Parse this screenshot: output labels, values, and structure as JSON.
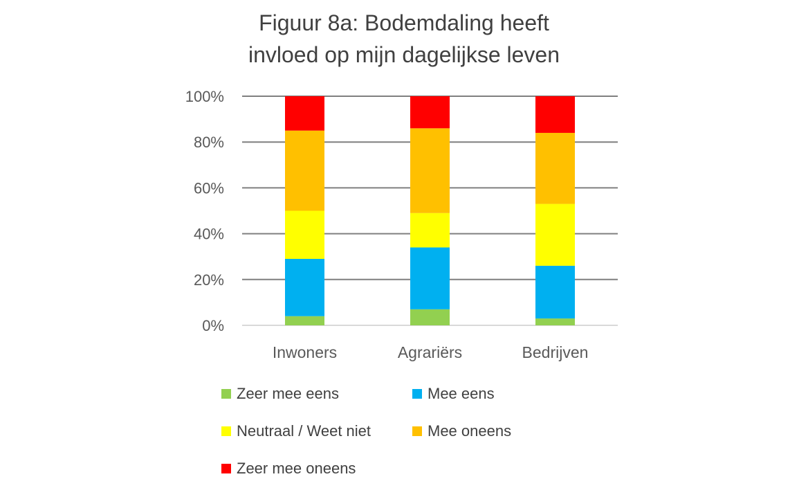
{
  "chart_data": {
    "type": "bar",
    "stacked": true,
    "title_lines": [
      "Figuur 8a: Bodemdaling heeft",
      "invloed op mijn dagelijkse leven"
    ],
    "categories": [
      "Inwoners",
      "Agrariërs",
      "Bedrijven"
    ],
    "ylim": [
      0,
      100
    ],
    "yticks": [
      "0%",
      "20%",
      "40%",
      "60%",
      "80%",
      "100%"
    ],
    "grid": true,
    "legend_position": "bottom",
    "series": [
      {
        "name": "Zeer mee eens",
        "color": "#92D050",
        "values": [
          4,
          7,
          3
        ]
      },
      {
        "name": "Mee eens",
        "color": "#00B0F0",
        "values": [
          25,
          27,
          23
        ]
      },
      {
        "name": "Neutraal / Weet niet",
        "color": "#FFFF00",
        "values": [
          21,
          15,
          27
        ]
      },
      {
        "name": "Mee oneens",
        "color": "#FFC000",
        "values": [
          35,
          37,
          31
        ]
      },
      {
        "name": "Zeer mee oneens",
        "color": "#FF0000",
        "values": [
          15,
          14,
          16
        ]
      }
    ]
  }
}
